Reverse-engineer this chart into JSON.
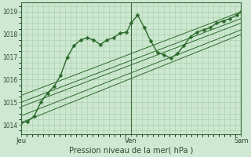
{
  "xlabel": "Pression niveau de la mer( hPa )",
  "background_color": "#cee8d2",
  "plot_bg_color": "#cce8d0",
  "grid_color": "#aaccaa",
  "line_color": "#2d6a2d",
  "ylim": [
    1013.6,
    1019.4
  ],
  "yticks": [
    1014,
    1015,
    1016,
    1017,
    1018,
    1019
  ],
  "xtick_labels": [
    "Jeu",
    "",
    "Ven",
    "",
    "Sam"
  ],
  "xtick_positions": [
    0,
    0.25,
    0.5,
    0.75,
    1.0
  ],
  "vline_positions": [
    0.0,
    0.5,
    1.0
  ],
  "main_series": {
    "x": [
      0.0,
      0.03,
      0.06,
      0.09,
      0.12,
      0.15,
      0.18,
      0.21,
      0.24,
      0.27,
      0.3,
      0.33,
      0.36,
      0.39,
      0.42,
      0.45,
      0.48,
      0.5,
      0.53,
      0.56,
      0.59,
      0.62,
      0.65,
      0.68,
      0.71,
      0.74,
      0.77,
      0.8,
      0.83,
      0.86,
      0.89,
      0.92,
      0.95,
      0.98,
      1.0
    ],
    "y": [
      1014.1,
      1014.15,
      1014.4,
      1015.0,
      1015.4,
      1015.7,
      1016.2,
      1017.0,
      1017.5,
      1017.75,
      1017.85,
      1017.75,
      1017.55,
      1017.75,
      1017.85,
      1018.05,
      1018.1,
      1018.5,
      1018.85,
      1018.3,
      1017.7,
      1017.2,
      1017.1,
      1016.95,
      1017.15,
      1017.5,
      1017.9,
      1018.1,
      1018.2,
      1018.3,
      1018.5,
      1018.6,
      1018.7,
      1018.85,
      1019.0
    ],
    "marker": "D",
    "markersize": 2.5,
    "linewidth": 1.0
  },
  "straight_lines": [
    {
      "x": [
        0.0,
        1.0
      ],
      "y": [
        1014.1,
        1018.0
      ]
    },
    {
      "x": [
        0.0,
        1.0
      ],
      "y": [
        1014.4,
        1018.2
      ]
    },
    {
      "x": [
        0.0,
        1.0
      ],
      "y": [
        1014.8,
        1018.5
      ]
    },
    {
      "x": [
        0.0,
        1.0
      ],
      "y": [
        1015.0,
        1018.7
      ]
    },
    {
      "x": [
        0.0,
        1.0
      ],
      "y": [
        1015.3,
        1019.0
      ]
    }
  ],
  "straight_linewidth": 0.7
}
